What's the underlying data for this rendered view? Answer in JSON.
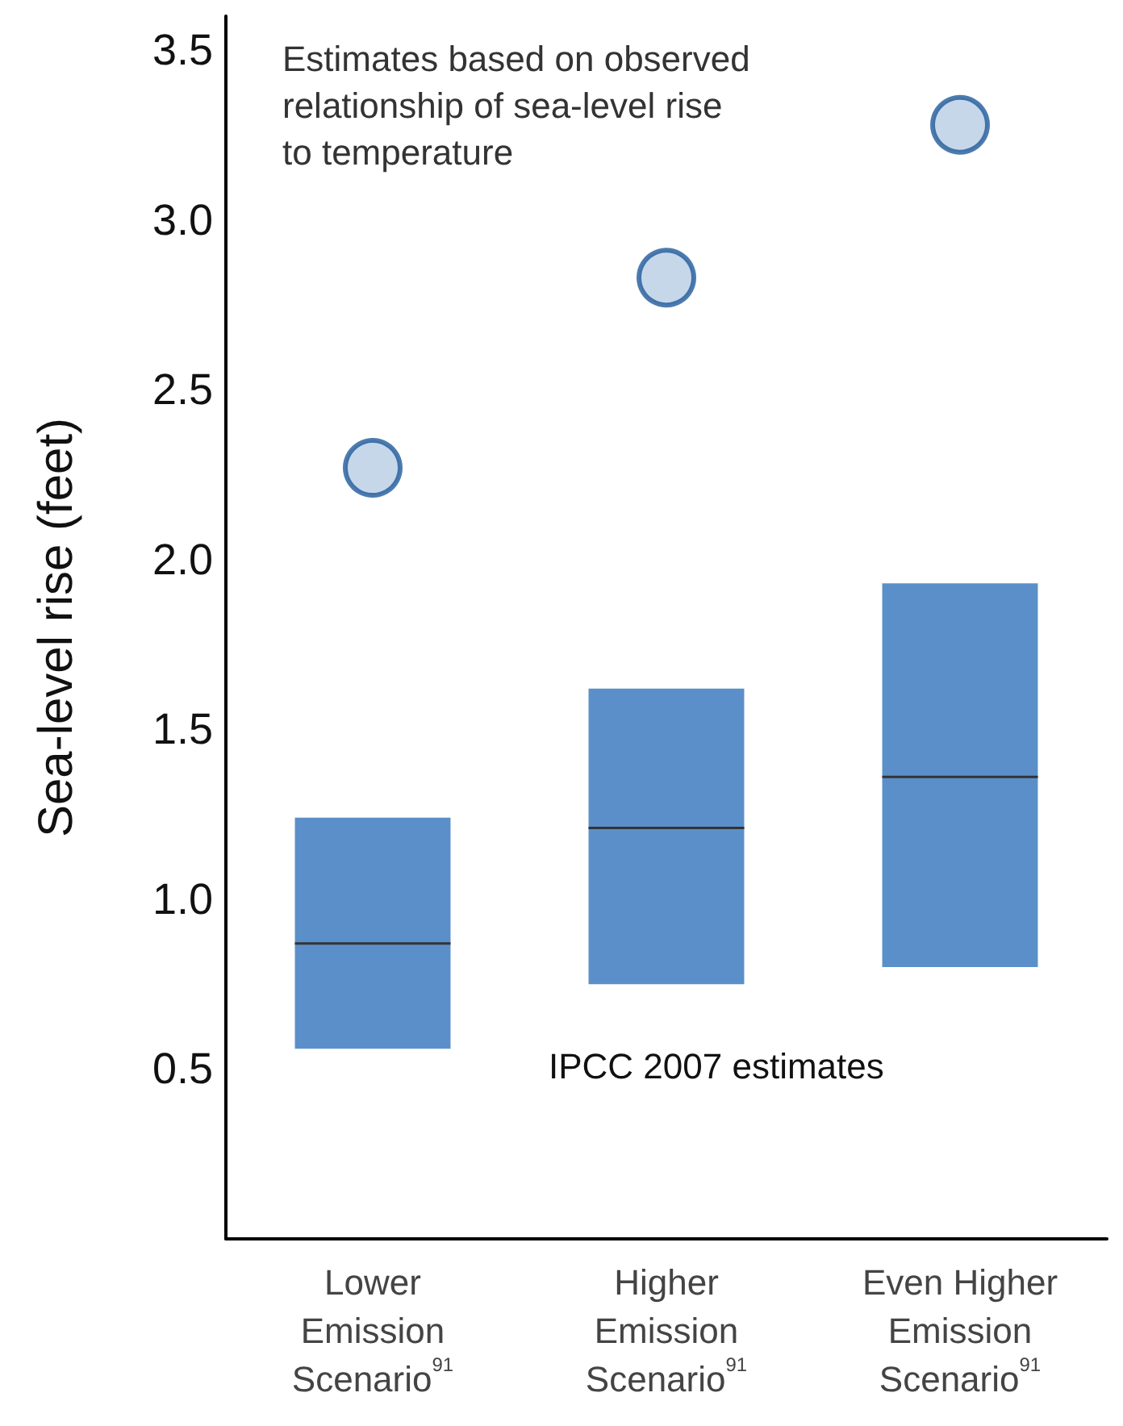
{
  "chart_data": {
    "type": "box",
    "ylabel": "Sea-level rise (feet)",
    "categories": [
      "Lower\nEmission\nScenario$^{91}$",
      "Higher\nEmission\nScenario$^{91}$",
      "Even Higher\nEmission\nScenario$^{91}$"
    ],
    "ylim": [
      0,
      3.6
    ],
    "yticks": [
      0.5,
      {
        "value": 1,
        "label": "1.0"
      },
      1.5,
      {
        "value": 2,
        "label": "2.0"
      },
      2.5,
      {
        "value": 3,
        "label": "3.0"
      },
      3.5
    ],
    "series": [
      {
        "color": "#5b8fc9",
        "boxes": [
          {
            "low": 0.56,
            "q1": 0.56,
            "median": 0.87,
            "q3": 1.24,
            "high": 1.24
          },
          {
            "low": 0.75,
            "q1": 0.75,
            "median": 1.21,
            "q3": 1.62,
            "high": 1.62
          },
          {
            "low": 0.8,
            "q1": 0.8,
            "median": 1.36,
            "q3": 1.93,
            "high": 1.93
          }
        ]
      },
      {
        "type": "scatter",
        "color": "#b9cde5",
        "x": [
          "Lower\nEmission\nScenario$^{91}$",
          "Higher\nEmission\nScenario$^{91}$",
          "Even Higher\nEmission\nScenario$^{91}$"
        ],
        "values": [
          2.27,
          2.83,
          3.28
        ]
      }
    ],
    "annotations": [
      "Estimates based on observed\nrelationship of sea-level rise\nto temperature",
      "IPCC 2007 estimates"
    ],
    "marker": "circle",
    "grid": false
  }
}
